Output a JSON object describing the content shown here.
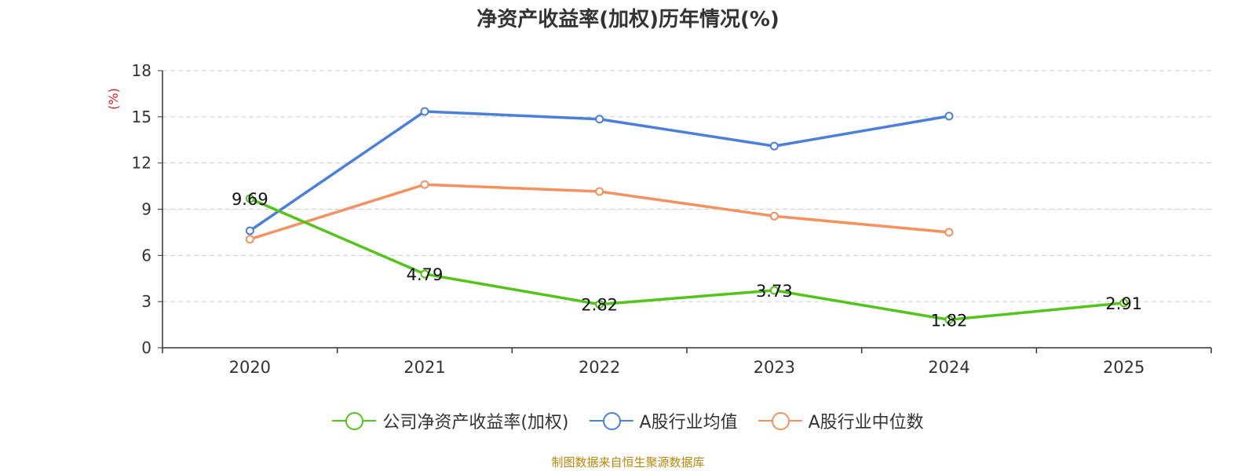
{
  "chart_data": {
    "type": "line",
    "title": "净资产收益率(加权)历年情况(%)",
    "ylabel": "(%)",
    "xlabel": "",
    "ylim": [
      0,
      18
    ],
    "yticks": [
      0,
      3,
      6,
      9,
      12,
      15,
      18
    ],
    "categories": [
      "2020",
      "2021",
      "2022",
      "2023",
      "2024",
      "2025"
    ],
    "grid": true,
    "legend_position": "bottom",
    "series": [
      {
        "name": "公司净资产收益率(加权)",
        "color": "#52c41a",
        "values": [
          9.69,
          4.79,
          2.82,
          3.73,
          1.82,
          2.91
        ],
        "labels": [
          "9.69",
          "4.79",
          "2.82",
          "3.73",
          "1.82",
          "2.91"
        ]
      },
      {
        "name": "A股行业均值",
        "color": "#4a7fdc",
        "values": [
          7.6,
          15.35,
          14.85,
          13.1,
          15.05,
          null
        ]
      },
      {
        "name": "A股行业中位数",
        "color": "#f4915e",
        "values": [
          7.05,
          10.6,
          10.15,
          8.55,
          7.5,
          null
        ]
      }
    ]
  },
  "footer": {
    "source": "制图数据来自恒生聚源数据库"
  }
}
